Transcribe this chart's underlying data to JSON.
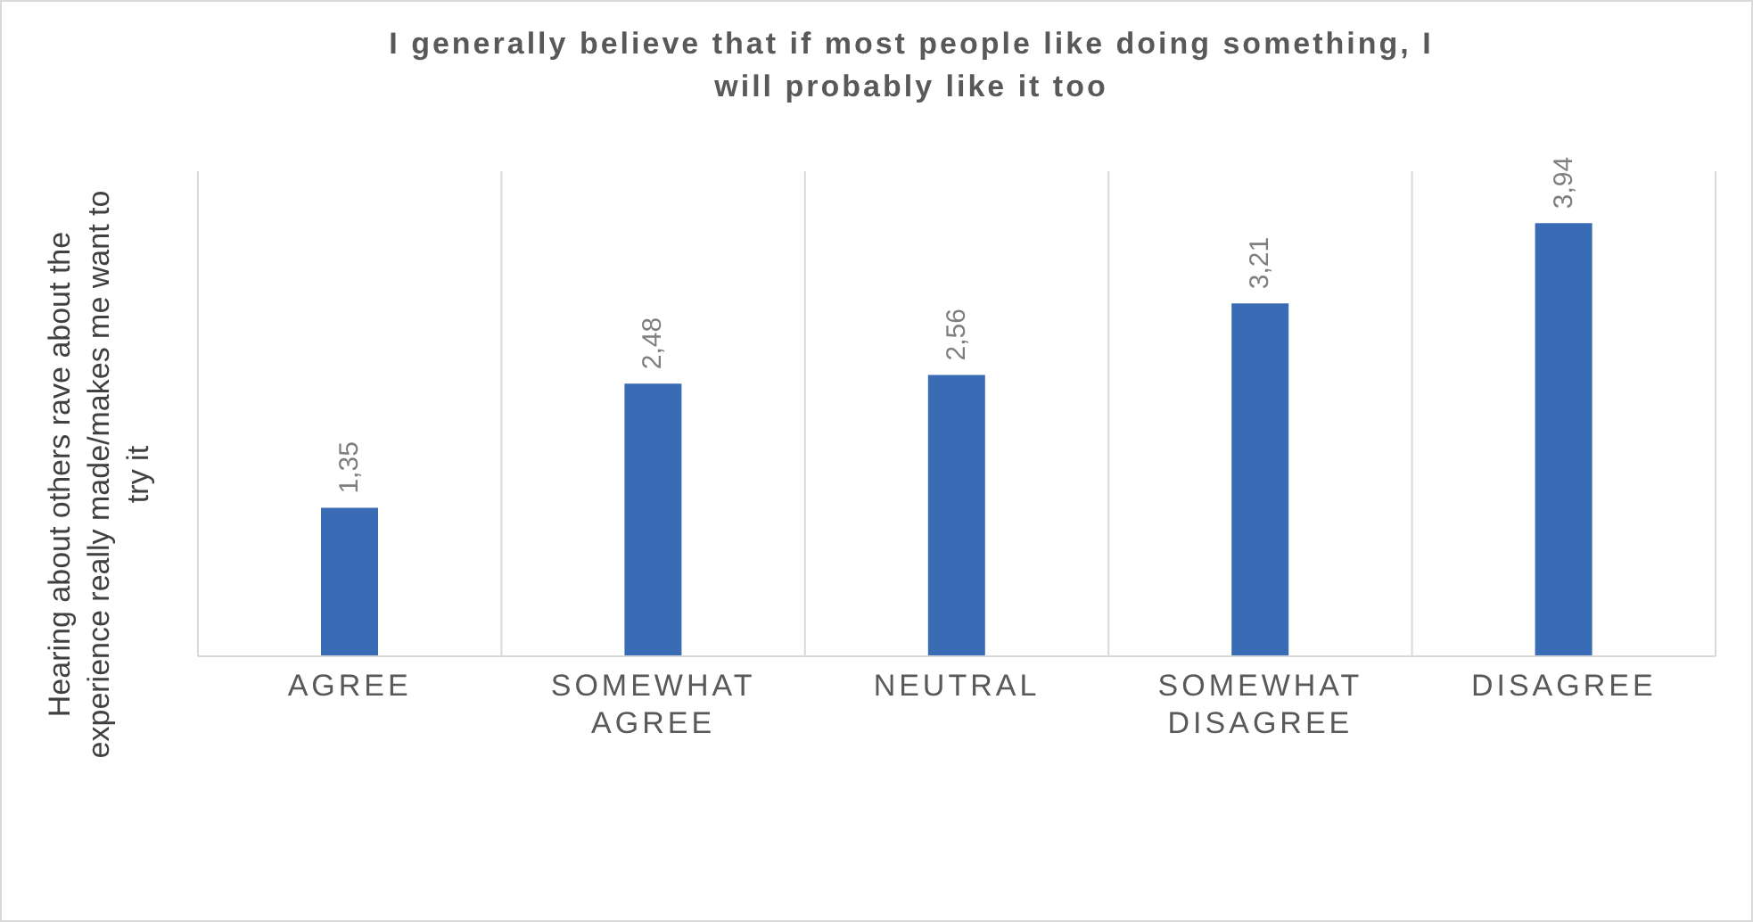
{
  "chart_data": {
    "type": "bar",
    "title": "I generally believe that if most people like doing something, I will probably like it too",
    "ylabel": "Hearing about others rave about the experience really made/makes me want to try it",
    "categories": [
      "AGREE",
      "SOMEWHAT AGREE",
      "NEUTRAL",
      "SOMEWHAT DISAGREE",
      "DISAGREE"
    ],
    "values": [
      1.35,
      2.48,
      2.56,
      3.21,
      3.94
    ],
    "value_labels": [
      "1,35",
      "2,48",
      "2,56",
      "3,21",
      "3,94"
    ],
    "color": "#3a6cb6",
    "grid": "x"
  }
}
